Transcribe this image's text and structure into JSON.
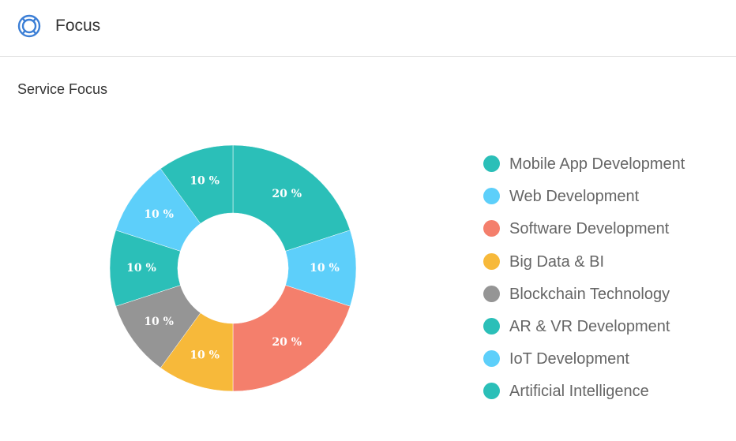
{
  "header": {
    "title": "Focus",
    "icon": "focus-ring-icon",
    "icon_color": "#3c7fd6"
  },
  "section": {
    "title": "Service Focus"
  },
  "chart_data": {
    "type": "pie",
    "donut": true,
    "categories": [
      "Mobile App Development",
      "Web Development",
      "Software Development",
      "Big Data & BI",
      "Blockchain Technology",
      "AR & VR Development",
      "IoT Development",
      "Artificial Intelligence"
    ],
    "values": [
      20,
      10,
      20,
      10,
      10,
      10,
      10,
      10
    ],
    "labels": [
      "20 %",
      "10 %",
      "20 %",
      "10 %",
      "10 %",
      "10 %",
      "10 %",
      "10 %"
    ],
    "colors": [
      "#2bbfb8",
      "#5dcffa",
      "#f47f6c",
      "#f7b93a",
      "#959595",
      "#2bbfb8",
      "#5dcffa",
      "#2bbfb8"
    ],
    "legend_position": "right"
  }
}
